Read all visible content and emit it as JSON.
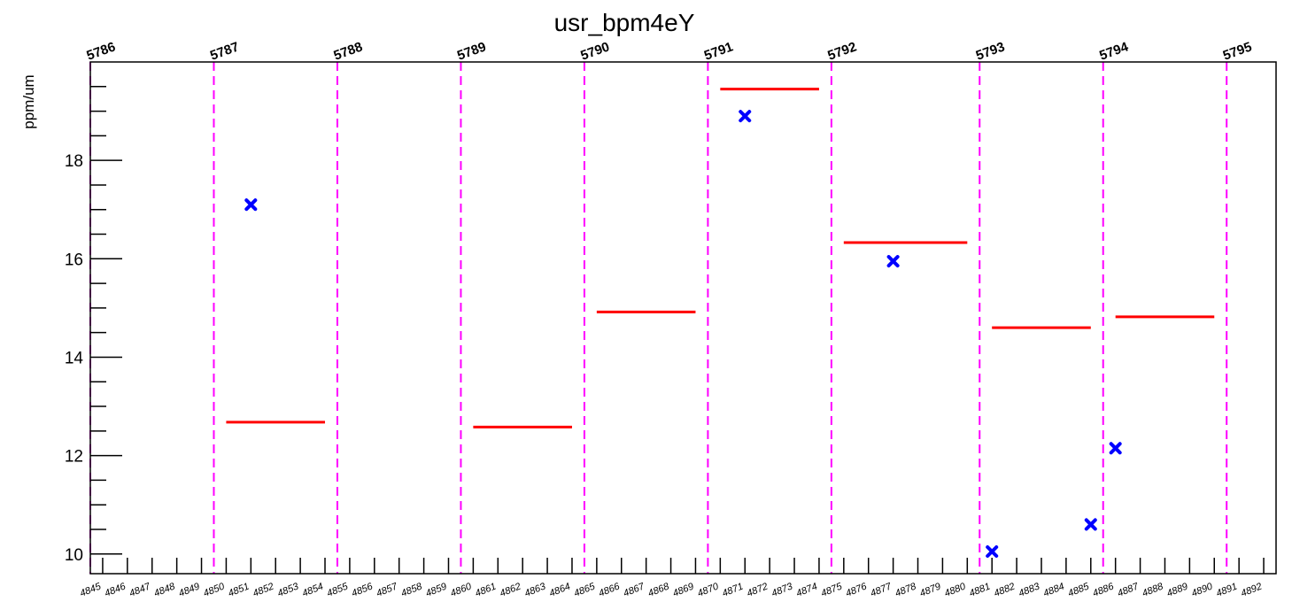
{
  "chart_data": {
    "type": "scatter",
    "title": "usr_bpm4eY",
    "ylabel": "ppm/um",
    "xlabel": "",
    "xlim": [
      4844.5,
      4892.5
    ],
    "ylim": [
      9.6,
      20.0
    ],
    "yticks": [
      10,
      12,
      14,
      16,
      18
    ],
    "x_tick_labels": [
      "4845",
      "4846",
      "4847",
      "4848",
      "4849",
      "4850",
      "4851",
      "4852",
      "4853",
      "4854",
      "4855",
      "4856",
      "4857",
      "4858",
      "4859",
      "4860",
      "4861",
      "4862",
      "4863",
      "4864",
      "4865",
      "4866",
      "4867",
      "4868",
      "4869",
      "4870",
      "4871",
      "4872",
      "4873",
      "4874",
      "4875",
      "4876",
      "4877",
      "4878",
      "4879",
      "4880",
      "4881",
      "4882",
      "4883",
      "4884",
      "4885",
      "4886",
      "4887",
      "4888",
      "4889",
      "4890",
      "4891",
      "4892"
    ],
    "run_boundaries": [
      {
        "label": "5786",
        "x": 4844.5
      },
      {
        "label": "5787",
        "x": 4849.5
      },
      {
        "label": "5788",
        "x": 4854.5
      },
      {
        "label": "5789",
        "x": 4859.5
      },
      {
        "label": "5790",
        "x": 4864.5
      },
      {
        "label": "5791",
        "x": 4869.5
      },
      {
        "label": "5792",
        "x": 4874.5
      },
      {
        "label": "5793",
        "x": 4880.5
      },
      {
        "label": "5794",
        "x": 4885.5
      },
      {
        "label": "5795",
        "x": 4890.5
      }
    ],
    "points": [
      {
        "x": 4851,
        "y": 17.1
      },
      {
        "x": 4871,
        "y": 18.9
      },
      {
        "x": 4877,
        "y": 15.95
      },
      {
        "x": 4881,
        "y": 10.05
      },
      {
        "x": 4885,
        "y": 10.6
      },
      {
        "x": 4886,
        "y": 12.15
      }
    ],
    "run_averages": [
      {
        "x0": 4850,
        "x1": 4854,
        "y": 12.68
      },
      {
        "x0": 4860,
        "x1": 4864,
        "y": 12.58
      },
      {
        "x0": 4865,
        "x1": 4869,
        "y": 14.92
      },
      {
        "x0": 4870,
        "x1": 4874,
        "y": 19.45
      },
      {
        "x0": 4875,
        "x1": 4880,
        "y": 16.33
      },
      {
        "x0": 4881,
        "x1": 4885,
        "y": 14.6
      },
      {
        "x0": 4886,
        "x1": 4890,
        "y": 14.82
      }
    ],
    "colors": {
      "points": "#0000ff",
      "averages": "#ff0000",
      "boundaries": "#ff00ff",
      "axis": "#000000"
    }
  }
}
